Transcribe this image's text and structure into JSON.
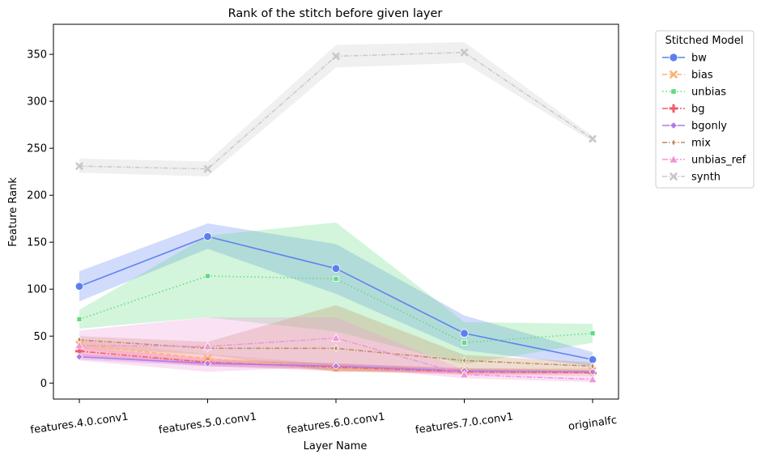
{
  "chart_data": {
    "type": "line",
    "title": "Rank of the stitch before given layer",
    "xlabel": "Layer Name",
    "ylabel": "Feature Rank",
    "categories": [
      "features.4.0.conv1",
      "features.5.0.conv1",
      "features.6.0.conv1",
      "features.7.0.conv1",
      "originalfc"
    ],
    "ylim": [
      -17,
      382
    ],
    "yticks": [
      0,
      50,
      100,
      150,
      200,
      250,
      300,
      350
    ],
    "grid": false,
    "legend": {
      "title": "Stitched Model",
      "placement": "outside-top-right"
    },
    "series": [
      {
        "name": "bw",
        "color": "#5b7ff0",
        "dash": "none",
        "marker": "circle",
        "values": [
          103,
          156,
          122,
          53,
          25
        ],
        "band_low": [
          87,
          143,
          95,
          35,
          18
        ],
        "band_high": [
          119,
          170,
          148,
          72,
          33
        ]
      },
      {
        "name": "bias",
        "color": "#fbb26e",
        "dash": "6,3",
        "marker": "x",
        "values": [
          41,
          26,
          16,
          13,
          13
        ],
        "band_low": [
          36,
          22,
          13,
          10,
          10
        ],
        "band_high": [
          46,
          31,
          20,
          16,
          16
        ]
      },
      {
        "name": "unbias",
        "color": "#5fdc7d",
        "dash": "1.5,3",
        "marker": "square",
        "values": [
          68,
          114,
          111,
          43,
          53
        ],
        "band_low": [
          58,
          70,
          55,
          20,
          43
        ],
        "band_high": [
          78,
          157,
          171,
          65,
          63
        ]
      },
      {
        "name": "bg",
        "color": "#f35a6e",
        "dash": "7,2,2,2",
        "marker": "plus",
        "values": [
          34,
          22,
          17,
          12,
          11
        ],
        "band_low": [
          29,
          18,
          13,
          9,
          8
        ],
        "band_high": [
          39,
          26,
          21,
          15,
          14
        ]
      },
      {
        "name": "bgonly",
        "color": "#b07ae8",
        "dash": "none",
        "marker": "diamond",
        "values": [
          28,
          21,
          18,
          13,
          12
        ],
        "band_low": [
          25,
          18,
          15,
          10,
          10
        ],
        "band_high": [
          31,
          24,
          21,
          16,
          14
        ]
      },
      {
        "name": "mix",
        "color": "#c18a5e",
        "dash": "6,2,1.5,2",
        "marker": "thin_diamond",
        "values": [
          46,
          37,
          37,
          24,
          18
        ],
        "band_low": [
          38,
          30,
          12,
          12,
          14
        ],
        "band_high": [
          50,
          44,
          83,
          30,
          22
        ]
      },
      {
        "name": "unbias_ref",
        "color": "#f095d8",
        "dash": "7,2,2,2",
        "marker": "triangle",
        "values": [
          40,
          39,
          48,
          9,
          4
        ],
        "band_low": [
          24,
          12,
          18,
          5,
          1
        ],
        "band_high": [
          56,
          70,
          70,
          14,
          8
        ]
      },
      {
        "name": "synth",
        "color": "#c8c8c8",
        "dash": "6,2,1.5,2",
        "marker": "x",
        "values": [
          231,
          228,
          348,
          352,
          260
        ],
        "band_low": [
          224,
          220,
          336,
          341,
          257
        ],
        "band_high": [
          239,
          236,
          360,
          363,
          263
        ]
      }
    ]
  }
}
